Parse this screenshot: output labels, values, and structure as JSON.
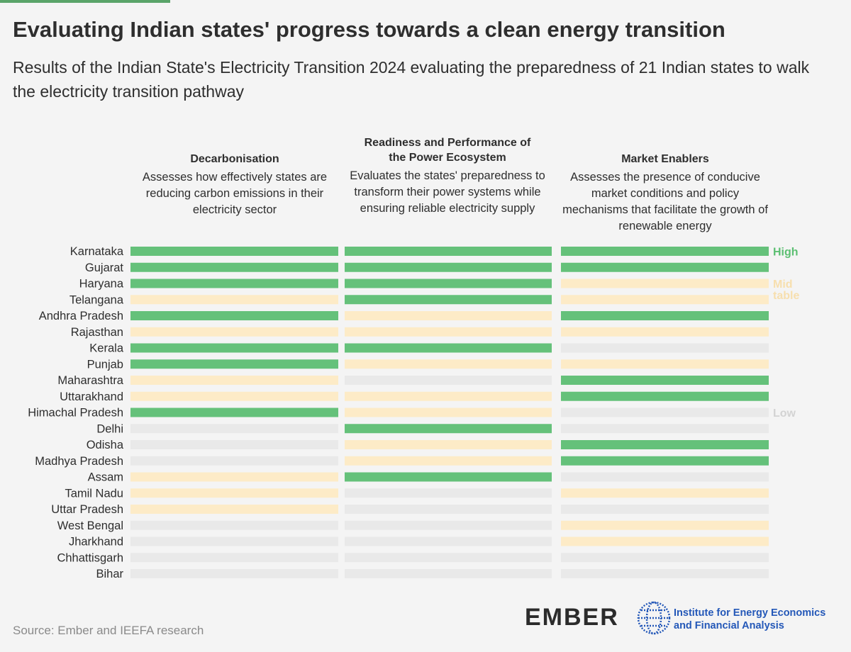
{
  "title": "Evaluating Indian states' progress towards a clean energy transition",
  "subtitle": "Results of the Indian State's Electricity Transition 2024 evaluating the preparedness of 21 Indian states to walk the electricity transition pathway",
  "columns": [
    {
      "heading": "Decarbonisation",
      "description": "Assesses how effectively states are reducing carbon emissions in their electricity sector"
    },
    {
      "heading": "Readiness and Performance of the Power Ecosystem",
      "description": "Evaluates the states' preparedness to transform their power systems while ensuring reliable electricity supply"
    },
    {
      "heading": "Market Enablers",
      "description": "Assesses the presence of conducive market conditions and policy mechanisms that facilitate the growth of  renewable energy"
    }
  ],
  "legend": {
    "high": "High",
    "mid": "Mid table",
    "low": "Low"
  },
  "colors": {
    "high": "#65c17a",
    "mid": "#fdebc7",
    "low": "#e9e9e9",
    "accent": "#5aa469",
    "label_high": "#5cbf72",
    "label_mid": "#f7dfae",
    "label_low": "#d3d3d3"
  },
  "source": "Source: Ember and IEEFA research",
  "logos": {
    "ember": "EMBER",
    "ieefa": "Institute for Energy Economics and Financial Analysis"
  },
  "chart_data": {
    "type": "heatmap",
    "categories": [
      "Decarbonisation",
      "Readiness and Performance of the Power Ecosystem",
      "Market Enablers"
    ],
    "levels": [
      "High",
      "Mid table",
      "Low"
    ],
    "rows": [
      {
        "state": "Karnataka",
        "values": [
          "High",
          "High",
          "High"
        ]
      },
      {
        "state": "Gujarat",
        "values": [
          "High",
          "High",
          "High"
        ]
      },
      {
        "state": "Haryana",
        "values": [
          "High",
          "High",
          "Mid table"
        ]
      },
      {
        "state": "Telangana",
        "values": [
          "Mid table",
          "High",
          "Mid table"
        ]
      },
      {
        "state": "Andhra Pradesh",
        "values": [
          "High",
          "Mid table",
          "High"
        ]
      },
      {
        "state": "Rajasthan",
        "values": [
          "Mid table",
          "Mid table",
          "Mid table"
        ]
      },
      {
        "state": "Kerala",
        "values": [
          "High",
          "High",
          "Low"
        ]
      },
      {
        "state": "Punjab",
        "values": [
          "High",
          "Mid table",
          "Mid table"
        ]
      },
      {
        "state": "Maharashtra",
        "values": [
          "Mid table",
          "Low",
          "High"
        ]
      },
      {
        "state": "Uttarakhand",
        "values": [
          "Mid table",
          "Mid table",
          "High"
        ]
      },
      {
        "state": "Himachal Pradesh",
        "values": [
          "High",
          "Mid table",
          "Low"
        ]
      },
      {
        "state": "Delhi",
        "values": [
          "Low",
          "High",
          "Low"
        ]
      },
      {
        "state": "Odisha",
        "values": [
          "Low",
          "Mid table",
          "High"
        ]
      },
      {
        "state": "Madhya Pradesh",
        "values": [
          "Low",
          "Mid table",
          "High"
        ]
      },
      {
        "state": "Assam",
        "values": [
          "Mid table",
          "High",
          "Low"
        ]
      },
      {
        "state": "Tamil Nadu",
        "values": [
          "Mid table",
          "Low",
          "Mid table"
        ]
      },
      {
        "state": "Uttar Pradesh",
        "values": [
          "Mid table",
          "Low",
          "Low"
        ]
      },
      {
        "state": "West Bengal",
        "values": [
          "Low",
          "Low",
          "Mid table"
        ]
      },
      {
        "state": "Jharkhand",
        "values": [
          "Low",
          "Low",
          "Mid table"
        ]
      },
      {
        "state": "Chhattisgarh",
        "values": [
          "Low",
          "Low",
          "Low"
        ]
      },
      {
        "state": "Bihar",
        "values": [
          "Low",
          "Low",
          "Low"
        ]
      }
    ]
  }
}
